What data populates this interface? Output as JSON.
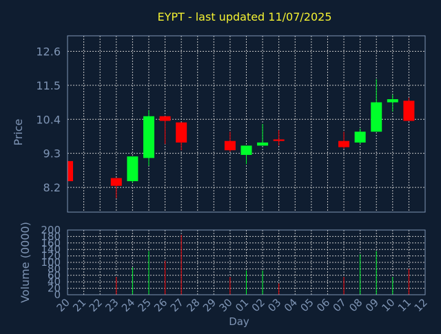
{
  "colors": {
    "background": "#0f1d30",
    "grid": "#c8c8c8",
    "axis_text": "#7f95b5",
    "title": "#f5f232",
    "up": "#00ff2a",
    "down": "#ff0000"
  },
  "chart_data": {
    "type": "candlestick",
    "title": "EYPT - last updated 11/07/2025",
    "xlabel": "Day",
    "price_panel": {
      "ylabel": "Price",
      "ylim": [
        7.4,
        13.1
      ],
      "yticks": [
        8.2,
        9.3,
        10.4,
        11.5,
        12.6
      ],
      "ytick_labels": [
        "8.2",
        "9.3",
        "10.4",
        "11.5",
        "12.6"
      ],
      "grid": true
    },
    "volume_panel": {
      "ylabel": "Volume (0000)",
      "ylim": [
        0,
        200
      ],
      "yticks": [
        0,
        20,
        40,
        60,
        80,
        100,
        120,
        140,
        160,
        180,
        200
      ],
      "ytick_labels": [
        "0",
        "20",
        "40",
        "60",
        "80",
        "100",
        "120",
        "140",
        "160",
        "180",
        "200"
      ],
      "grid": true
    },
    "x_labels": [
      "20",
      "21",
      "22",
      "23",
      "24",
      "25",
      "26",
      "27",
      "28",
      "29",
      "30",
      "01",
      "02",
      "03",
      "04",
      "05",
      "06",
      "07",
      "08",
      "09",
      "10",
      "11",
      "12"
    ],
    "candles": [
      {
        "label": "20",
        "open": 9.05,
        "high": 9.05,
        "low": 8.4,
        "close": 8.4,
        "volume": 0
      },
      {
        "label": "23",
        "open": 8.5,
        "high": 8.5,
        "low": 7.85,
        "close": 8.25,
        "volume": 55
      },
      {
        "label": "24",
        "open": 8.4,
        "high": 9.2,
        "low": 8.35,
        "close": 9.2,
        "volume": 85
      },
      {
        "label": "25",
        "open": 9.15,
        "high": 10.7,
        "low": 8.9,
        "close": 10.5,
        "volume": 135
      },
      {
        "label": "26",
        "open": 10.5,
        "high": 10.5,
        "low": 9.6,
        "close": 10.35,
        "volume": 105
      },
      {
        "label": "27",
        "open": 10.3,
        "high": 10.3,
        "low": 9.4,
        "close": 9.65,
        "volume": 185
      },
      {
        "label": "30",
        "open": 9.7,
        "high": 10.0,
        "low": 9.35,
        "close": 9.4,
        "volume": 55
      },
      {
        "label": "01",
        "open": 9.25,
        "high": 9.55,
        "low": 8.95,
        "close": 9.55,
        "volume": 75
      },
      {
        "label": "02",
        "open": 9.55,
        "high": 10.25,
        "low": 9.55,
        "close": 9.65,
        "volume": 75
      },
      {
        "label": "03",
        "open": 9.75,
        "high": 10.05,
        "low": 9.55,
        "close": 9.7,
        "volume": 35
      },
      {
        "label": "07",
        "open": 9.7,
        "high": 10.0,
        "low": 9.45,
        "close": 9.5,
        "volume": 55
      },
      {
        "label": "08",
        "open": 9.65,
        "high": 10.1,
        "low": 9.6,
        "close": 10.0,
        "volume": 125
      },
      {
        "label": "09",
        "open": 10.0,
        "high": 11.7,
        "low": 10.0,
        "close": 10.95,
        "volume": 135
      },
      {
        "label": "10",
        "open": 10.95,
        "high": 11.2,
        "low": 10.65,
        "close": 11.05,
        "volume": 55
      },
      {
        "label": "11",
        "open": 11.0,
        "high": 11.1,
        "low": 10.35,
        "close": 10.35,
        "volume": 80
      }
    ]
  }
}
